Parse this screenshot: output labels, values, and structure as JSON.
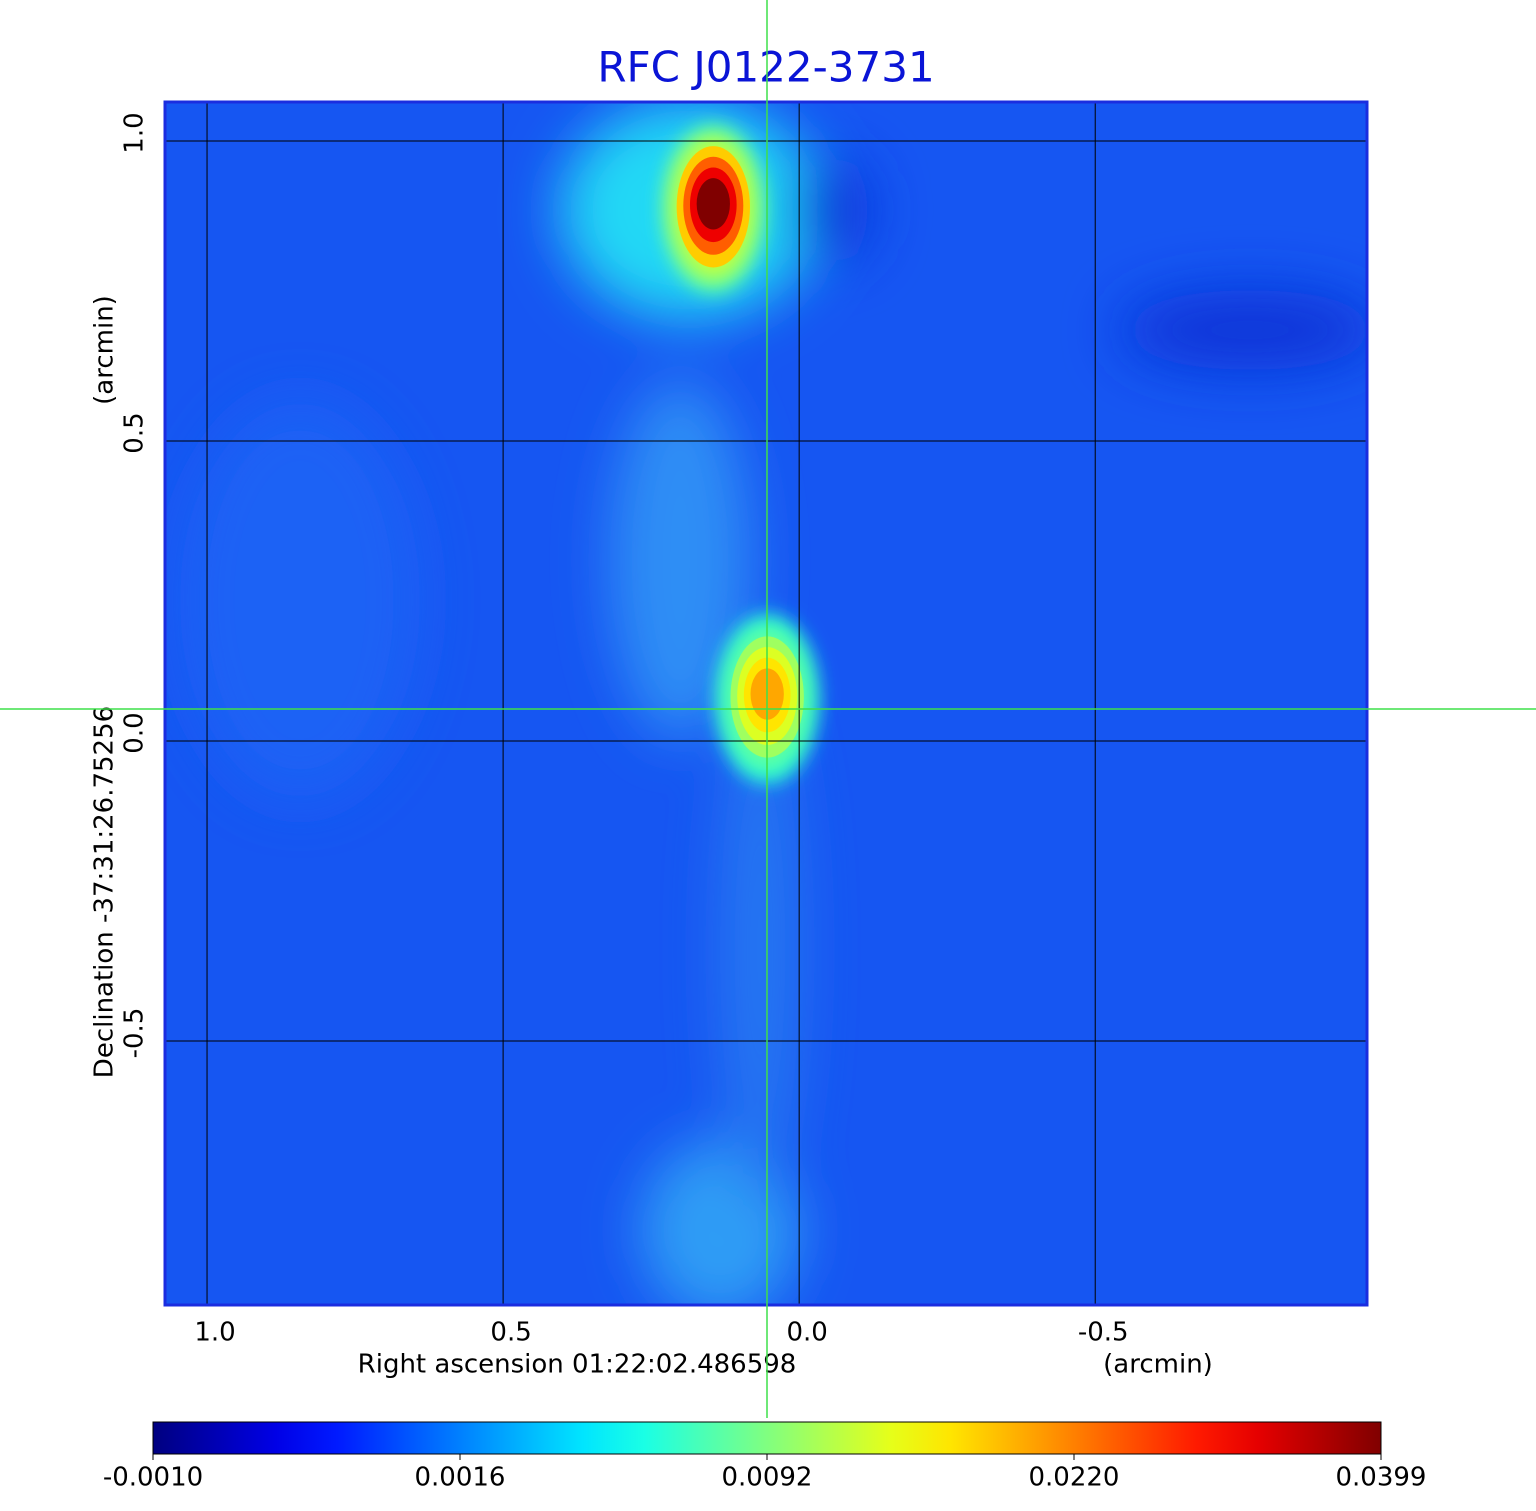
{
  "chart_data": {
    "type": "image",
    "title": "RFC J0122-3731",
    "x_label": "Right ascension  01:22:02.486598",
    "x_unit": "(arcmin)",
    "y_label": "Declination  -37:31:26.75256",
    "y_unit": "(arcmin)",
    "xlim": [
      1.071,
      -0.959
    ],
    "ylim": [
      -0.94,
      1.065
    ],
    "xticks": [
      {
        "value": 1,
        "label": "1.0"
      },
      0.5,
      {
        "value": 0,
        "label": "0.0"
      },
      -0.5
    ],
    "yticks": [
      {
        "value": 1,
        "label": "1.0"
      },
      0.5,
      {
        "value": 0,
        "label": "0.0"
      },
      -0.5
    ],
    "grid": true,
    "colormap": "jet",
    "colorbar_ticks": [
      {
        "value": -0.001,
        "label": "-0.0010"
      },
      {
        "value": 0.0016,
        "label": "0.0016"
      },
      {
        "value": 0.0092,
        "label": "0.0092"
      },
      {
        "value": 0.022,
        "label": "0.0220"
      },
      {
        "value": 0.0399,
        "label": "0.0399"
      }
    ],
    "sources": [
      {
        "x": 0.145,
        "y": 0.897,
        "peak": 0.0399
      },
      {
        "x": 0.054,
        "y": 0.08,
        "peak": 0.02
      }
    ]
  }
}
